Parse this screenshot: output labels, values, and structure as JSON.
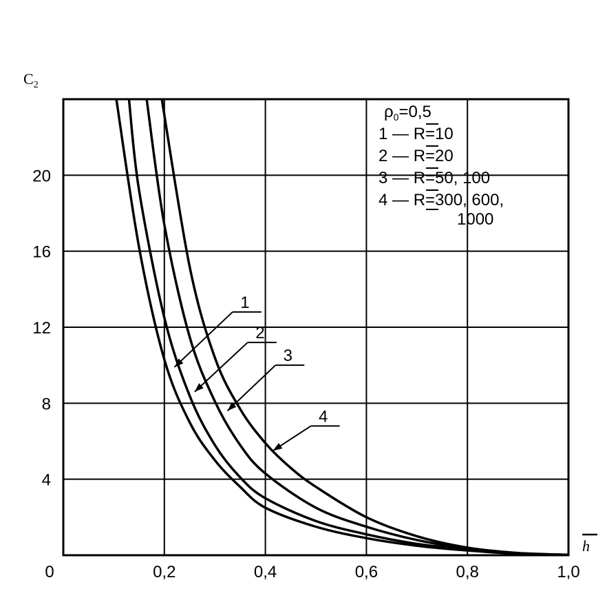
{
  "chart_data": {
    "type": "line",
    "ylabel_main": "C",
    "ylabel_sub": "2",
    "xlabel": "h",
    "xlim": [
      0,
      1.0
    ],
    "ylim": [
      0,
      24
    ],
    "grid": true,
    "x_ticks": [
      0,
      0.2,
      0.4,
      0.6,
      0.8,
      1.0
    ],
    "x_tick_labels": [
      "0",
      "0,2",
      "0,4",
      "0,6",
      "0,8",
      "1,0"
    ],
    "y_ticks": [
      4,
      8,
      12,
      16,
      20
    ],
    "y_tick_labels": [
      "4",
      "8",
      "12",
      "16",
      "20"
    ],
    "legend_placement": "top-right",
    "legend": {
      "param_symbol": "ρ",
      "param_sub": "0",
      "param_value": "=0,5",
      "entries": [
        {
          "num": "1",
          "dash": "—",
          "sym": "R",
          "value": "=10"
        },
        {
          "num": "2",
          "dash": "—",
          "sym": "R",
          "value": "=20"
        },
        {
          "num": "3",
          "dash": "—",
          "sym": "R",
          "value": "=50, 100"
        },
        {
          "num": "4",
          "dash": "—",
          "sym": "R",
          "value": "=300, 600,"
        }
      ],
      "continuation": "1000"
    },
    "series": [
      {
        "label": "1",
        "x": [
          0.105,
          0.15,
          0.2,
          0.25,
          0.3,
          0.35,
          0.4,
          0.5,
          0.6,
          0.7,
          0.8,
          0.9,
          1.0
        ],
        "y": [
          24,
          16.2,
          10.3,
          7.0,
          5.0,
          3.6,
          2.5,
          1.5,
          0.9,
          0.5,
          0.25,
          0.08,
          0.02
        ]
      },
      {
        "label": "2",
        "x": [
          0.13,
          0.15,
          0.2,
          0.25,
          0.3,
          0.35,
          0.4,
          0.5,
          0.6,
          0.7,
          0.8,
          0.9,
          1.0
        ],
        "y": [
          24,
          19.2,
          12.5,
          8.4,
          5.8,
          4.1,
          3.0,
          1.8,
          1.1,
          0.6,
          0.3,
          0.1,
          0.02
        ]
      },
      {
        "label": "3",
        "x": [
          0.165,
          0.2,
          0.25,
          0.3,
          0.35,
          0.4,
          0.5,
          0.6,
          0.7,
          0.8,
          0.9,
          1.0
        ],
        "y": [
          24,
          17.4,
          11.5,
          8.1,
          5.8,
          4.3,
          2.5,
          1.5,
          0.8,
          0.35,
          0.1,
          0.02
        ]
      },
      {
        "label": "4",
        "x": [
          0.195,
          0.25,
          0.3,
          0.35,
          0.4,
          0.45,
          0.5,
          0.6,
          0.7,
          0.8,
          0.9,
          1.0
        ],
        "y": [
          24,
          15.2,
          10.4,
          7.7,
          5.9,
          4.6,
          3.6,
          2.0,
          1.0,
          0.4,
          0.12,
          0.02
        ]
      }
    ],
    "callouts": [
      {
        "label": "1",
        "x": 0.22,
        "y": 9.9,
        "label_x": 0.335,
        "label_y": 12.8
      },
      {
        "label": "2",
        "x": 0.26,
        "y": 8.6,
        "label_x": 0.365,
        "label_y": 11.2
      },
      {
        "label": "3",
        "x": 0.325,
        "y": 7.6,
        "label_x": 0.42,
        "label_y": 10.0
      },
      {
        "label": "4",
        "x": 0.415,
        "y": 5.5,
        "label_x": 0.49,
        "label_y": 6.8
      }
    ]
  }
}
